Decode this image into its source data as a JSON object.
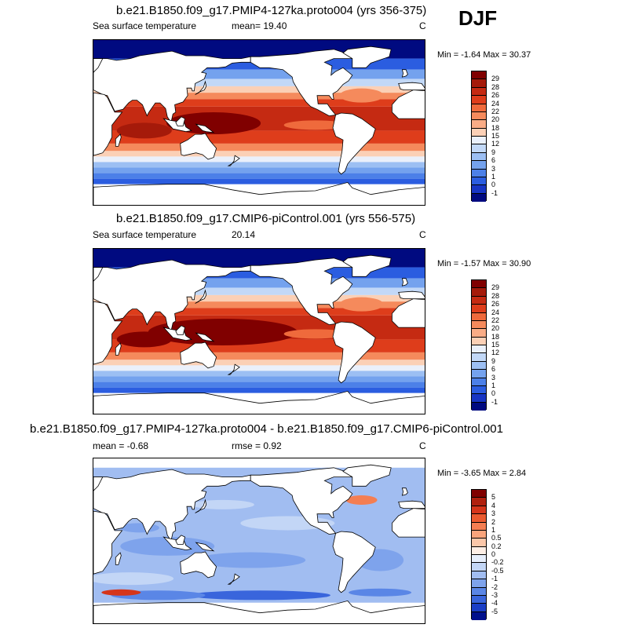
{
  "season": "DJF",
  "panels": [
    {
      "title": "b.e21.B1850.f09_g17.PMIP4-127ka.proto004 (yrs 356-375)",
      "left_label": "Sea surface temperature",
      "mid_label": "mean=  19.40",
      "unit": "C",
      "minmax": "Min =  -1.64 Max =  30.37",
      "levels": [
        "29",
        "28",
        "26",
        "24",
        "22",
        "20",
        "18",
        "15",
        "12",
        "9",
        "6",
        "3",
        "1",
        "0",
        "-1"
      ],
      "colors": [
        "#800000",
        "#a51a0a",
        "#c52a12",
        "#de3d1b",
        "#ef6a3c",
        "#f58a5c",
        "#f9ac86",
        "#fbd0b6",
        "#eaf0fb",
        "#c2d8f7",
        "#9cbff3",
        "#74a2ee",
        "#4c80e8",
        "#2b5de0",
        "#1735c4",
        "#000a80"
      ],
      "diff": false
    },
    {
      "title": "b.e21.B1850.f09_g17.CMIP6-piControl.001 (yrs 556-575)",
      "left_label": "Sea surface temperature",
      "mid_label": "20.14",
      "unit": "C",
      "minmax": "Min =  -1.57 Max =  30.90",
      "levels": [
        "29",
        "28",
        "26",
        "24",
        "22",
        "20",
        "18",
        "15",
        "12",
        "9",
        "6",
        "3",
        "1",
        "0",
        "-1"
      ],
      "colors": [
        "#800000",
        "#a51a0a",
        "#c52a12",
        "#de3d1b",
        "#ef6a3c",
        "#f58a5c",
        "#f9ac86",
        "#fbd0b6",
        "#eaf0fb",
        "#c2d8f7",
        "#9cbff3",
        "#74a2ee",
        "#4c80e8",
        "#2b5de0",
        "#1735c4",
        "#000a80"
      ],
      "diff": false
    },
    {
      "title": "b.e21.B1850.f09_g17.PMIP4-127ka.proto004 - b.e21.B1850.f09_g17.CMIP6-piControl.001",
      "left_label": "mean =  -0.68",
      "mid_label": "rmse =   0.92",
      "unit": "C",
      "minmax": "Min =  -3.65 Max =   2.84",
      "levels": [
        "5",
        "4",
        "3",
        "2",
        "1",
        "0.5",
        "0.2",
        "0",
        "-0.2",
        "-0.5",
        "-1",
        "-2",
        "-3",
        "-4",
        "-5"
      ],
      "colors": [
        "#800000",
        "#b0200e",
        "#d5351a",
        "#ea5a2f",
        "#f47e52",
        "#f9a47c",
        "#fbc7a9",
        "#fdeee5",
        "#e6eefb",
        "#c3d6f6",
        "#a1bdf1",
        "#7ea3ec",
        "#5a86e6",
        "#3965dc",
        "#1a3ec6",
        "#00108c"
      ],
      "diff": true
    }
  ]
}
